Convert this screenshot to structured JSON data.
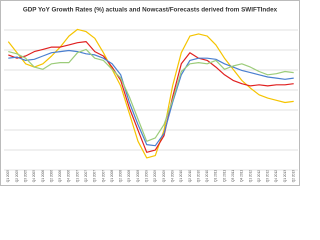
{
  "chart_data": {
    "type": "line",
    "title": "GDP YoY Growth Rates (%) actuals and Nowcast/Forecasts derived from SWIFTIndex",
    "categories": [
      "Q1 2005",
      "Q2 2005",
      "Q3 2005",
      "Q4 2005",
      "Q1 2006",
      "Q2 2006",
      "Q3 2006",
      "Q4 2006",
      "Q1 2007",
      "Q2 2007",
      "Q3 2007",
      "Q4 2007",
      "Q1 2008",
      "Q2 2008",
      "Q3 2008",
      "Q4 2008",
      "Q1 2009",
      "Q2 2009",
      "Q3 2009",
      "Q4 2009",
      "Q1 2010",
      "Q2 2010",
      "Q3 2010",
      "Q4 2010",
      "Q1 2011",
      "Q2 2011",
      "Q3 2011",
      "Q4 2011",
      "Q1 2012",
      "Q2 2012",
      "Q3 2012",
      "Q4 2012",
      "Q1 2013",
      "Q2 2013"
    ],
    "ylim": [
      -8,
      6
    ],
    "series": [
      {
        "color": "#f5c400",
        "values": [
          4.5,
          3.5,
          2.5,
          2.2,
          2.5,
          3.2,
          4.0,
          5.0,
          5.6,
          5.4,
          4.8,
          3.5,
          2.0,
          0.5,
          -2.0,
          -4.5,
          -6.0,
          -5.8,
          -3.5,
          0.5,
          3.5,
          5.0,
          5.2,
          5.0,
          4.2,
          3.0,
          2.0,
          1.0,
          0.3,
          -0.3,
          -0.6,
          -0.8,
          -1.0,
          -0.9
        ]
      },
      {
        "color": "#e02020",
        "values": [
          3.3,
          3.0,
          3.2,
          3.6,
          3.8,
          4.0,
          4.0,
          4.2,
          4.4,
          4.5,
          3.6,
          3.2,
          2.2,
          1.0,
          -1.5,
          -3.5,
          -5.5,
          -5.3,
          -4.0,
          -0.5,
          2.5,
          3.5,
          3.0,
          2.8,
          2.2,
          1.5,
          1.0,
          0.7,
          0.5,
          0.6,
          0.5,
          0.6,
          0.6,
          0.7
        ]
      },
      {
        "color": "#4a7fd0",
        "values": [
          3.0,
          3.1,
          2.8,
          2.9,
          3.2,
          3.5,
          3.6,
          3.7,
          3.6,
          3.4,
          3.3,
          3.0,
          2.5,
          1.5,
          -1.0,
          -3.0,
          -4.8,
          -4.9,
          -3.8,
          -1.0,
          1.5,
          2.8,
          3.0,
          3.0,
          2.9,
          2.5,
          2.2,
          1.9,
          1.7,
          1.5,
          1.3,
          1.2,
          1.1,
          1.2
        ]
      },
      {
        "color": "#9ccc7a",
        "values": [
          3.6,
          3.4,
          3.0,
          2.2,
          2.0,
          2.5,
          2.6,
          2.6,
          3.5,
          3.8,
          3.0,
          2.8,
          2.0,
          1.2,
          -0.5,
          -2.5,
          -4.5,
          -4.2,
          -3.0,
          -0.8,
          1.8,
          2.5,
          2.6,
          2.5,
          2.8,
          2.0,
          2.3,
          2.5,
          2.2,
          1.8,
          1.5,
          1.6,
          1.8,
          1.7
        ]
      }
    ]
  }
}
